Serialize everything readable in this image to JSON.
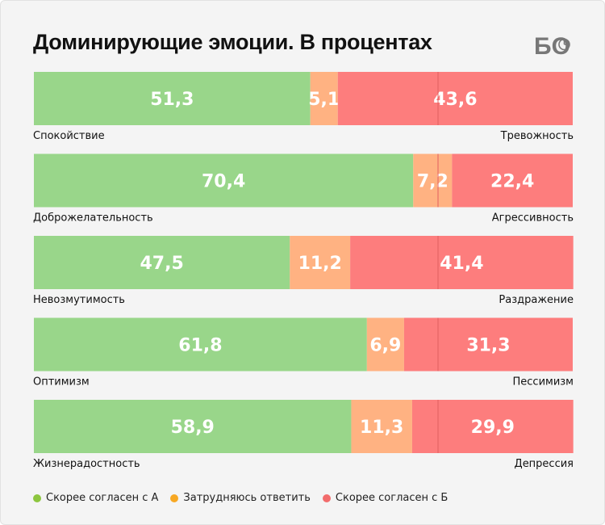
{
  "title": "Доминирующие эмоции. В процентах",
  "logo_text": "БО",
  "colors": {
    "agree_a": "#99d68a",
    "neutral": "#ffb282",
    "agree_b": "#fd7d7d",
    "legend_a": "#8dc63f",
    "legend_neutral": "#f7a823",
    "legend_b": "#f26c6c"
  },
  "legend": [
    {
      "label": "Скорее согласен с А",
      "color": "#8dc63f"
    },
    {
      "label": "Затрудняюсь ответить",
      "color": "#f7a823"
    },
    {
      "label": "Скорее согласен с Б",
      "color": "#f26c6c"
    }
  ],
  "chart_data": {
    "type": "bar",
    "orientation": "horizontal",
    "stacked": true,
    "xlim": [
      0,
      100
    ],
    "title": "Доминирующие эмоции. В процентах",
    "categories": [
      {
        "left": "Спокойствие",
        "right": "Тревожность"
      },
      {
        "left": "Доброжелательность",
        "right": "Агрессивность"
      },
      {
        "left": "Невозмутимость",
        "right": "Раздражение"
      },
      {
        "left": "Оптимизм",
        "right": "Пессимизм"
      },
      {
        "left": "Жизнерадостность",
        "right": "Депрессия"
      }
    ],
    "series": [
      {
        "name": "Скорее согласен с А",
        "values": [
          51.3,
          70.4,
          47.5,
          61.8,
          58.9
        ],
        "labels": [
          "51,3",
          "70,4",
          "47,5",
          "61,8",
          "58,9"
        ]
      },
      {
        "name": "Затрудняюсь ответить",
        "values": [
          5.1,
          7.2,
          11.2,
          6.9,
          11.3
        ],
        "labels": [
          "5,1",
          "7,2",
          "11,2",
          "6,9",
          "11,3"
        ]
      },
      {
        "name": "Скорее согласен с Б",
        "values": [
          43.6,
          22.4,
          41.4,
          31.3,
          29.9
        ],
        "labels": [
          "43,6",
          "22,4",
          "41,4",
          "31,3",
          "29,9"
        ]
      }
    ],
    "reference_line": 75,
    "legend_position": "bottom-left"
  }
}
